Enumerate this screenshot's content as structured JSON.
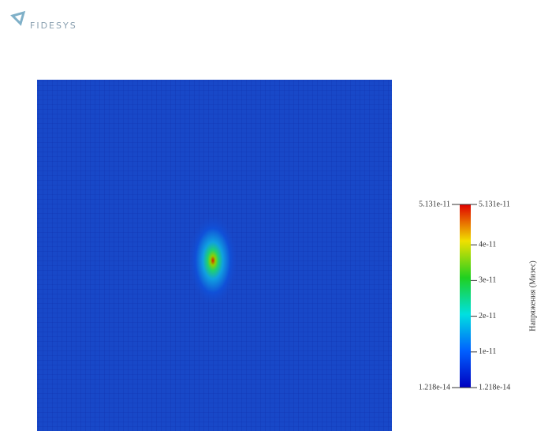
{
  "logo": {
    "text": "FIDESYS"
  },
  "colorbar": {
    "title": "Напряжения (Мизес)",
    "max": {
      "value": 5.131e-11,
      "label": "5.131e-11"
    },
    "min": {
      "value": 1.218e-14,
      "label": "1.218e-14"
    },
    "ticks": [
      {
        "value": 4e-11,
        "label": "4e-11"
      },
      {
        "value": 3e-11,
        "label": "3e-11"
      },
      {
        "value": 2e-11,
        "label": "2e-11"
      },
      {
        "value": 1e-11,
        "label": "1e-11"
      }
    ]
  }
}
